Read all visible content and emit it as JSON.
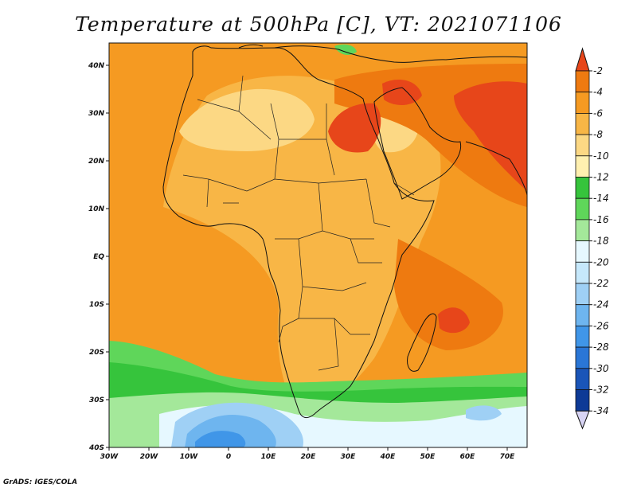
{
  "title": "Temperature at 500hPa [C], VT: 2021071106",
  "footer": "GrADS: IGES/COLA",
  "map": {
    "lon_range": [
      -30,
      75
    ],
    "lat_range": [
      -40,
      45
    ],
    "lon_ticks": [
      "30W",
      "20W",
      "10W",
      "0",
      "10E",
      "20E",
      "30E",
      "40E",
      "50E",
      "60E",
      "70E"
    ],
    "lat_ticks": [
      "40S",
      "30S",
      "20S",
      "10S",
      "EQ",
      "10N",
      "20N",
      "30N",
      "40N"
    ]
  },
  "colorbar": {
    "labels": [
      "-2",
      "-4",
      "-6",
      "-8",
      "-10",
      "-12",
      "-14",
      "-16",
      "-18",
      "-20",
      "-22",
      "-24",
      "-26",
      "-28",
      "-30",
      "-32",
      "-34"
    ],
    "colors": [
      "#e7461a",
      "#ee7a10",
      "#f59a22",
      "#f8b646",
      "#fcd884",
      "#fff0b0",
      "#36c43c",
      "#5fd65a",
      "#a4e89a",
      "#e6f8ff",
      "#c6e8fb",
      "#9fd0f5",
      "#6eb5ef",
      "#4096e8",
      "#2a76d6",
      "#1a55b8",
      "#0d3a96",
      "#08196a"
    ],
    "top_arrow_color": "#e7461a",
    "bottom_arrow_color": "#d8d4f4"
  },
  "field_colors": {
    "ocean_warm": "#f59a22",
    "land_mid": "#f8b646",
    "sahara_light": "#fcd884",
    "hot": "#ee7a10",
    "very_hot": "#e7461a",
    "cool_band": "#5fd65a",
    "green_band": "#36c43c",
    "pale_green": "#a4e89a",
    "very_pale": "#e6f8ff",
    "light_blue": "#9fd0f5",
    "blue": "#6eb5ef",
    "deep_blue": "#4096e8"
  }
}
